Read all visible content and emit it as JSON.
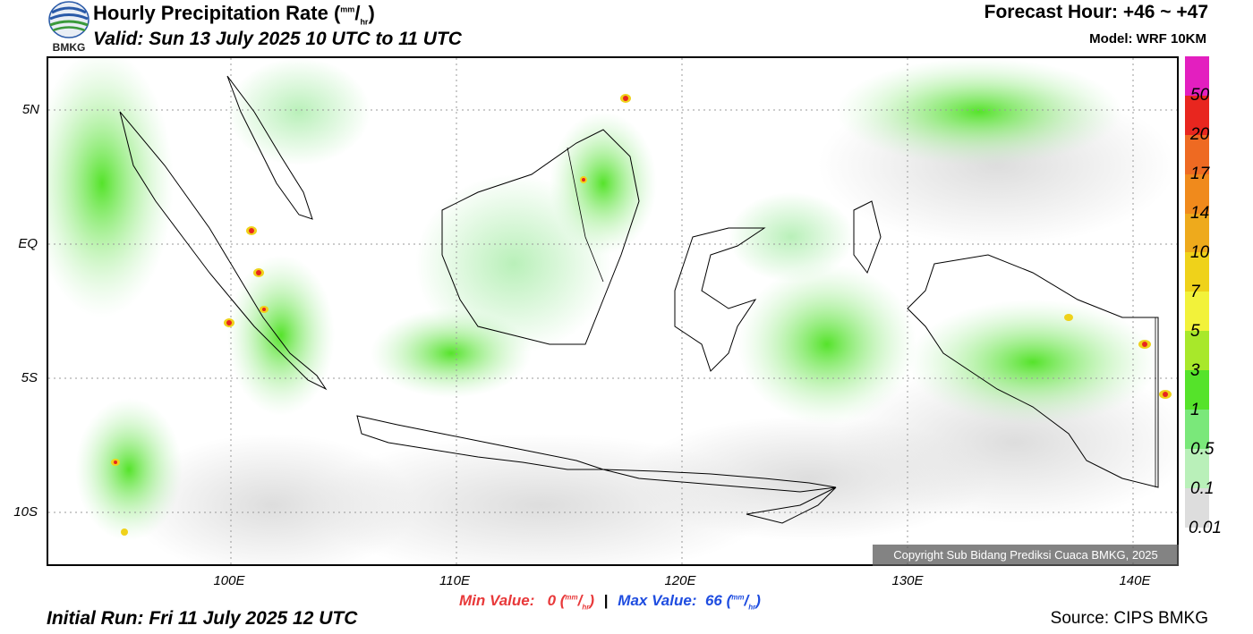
{
  "header": {
    "title": "Hourly Precipitation Rate",
    "unit_num": "mm",
    "unit_den": "hr",
    "valid": "Valid: Sun 13 July 2025 10 UTC to 11 UTC",
    "forecast_hour": "Forecast Hour: +46 ~ +47",
    "model": "Model: WRF 10KM",
    "logo_text": "BMKG"
  },
  "map": {
    "lat_labels": [
      "5N",
      "EQ",
      "5S",
      "10S"
    ],
    "lon_labels": [
      "100E",
      "110E",
      "120E",
      "130E",
      "140E"
    ],
    "copyright": "Copyright Sub Bidang Prediksi Cuaca BMKG, 2025"
  },
  "colorbar": {
    "labels": [
      "50",
      "20",
      "17",
      "14",
      "10",
      "7",
      "5",
      "3",
      "1",
      "0.5",
      "0.1",
      "0.01"
    ],
    "colors": [
      "#e31fbf",
      "#e8261f",
      "#ee6a22",
      "#f08a1c",
      "#eeaa1c",
      "#efd21a",
      "#f2f23a",
      "#a8e82a",
      "#55e32a",
      "#7ae87a",
      "#b9f0b9",
      "#dddddd"
    ]
  },
  "footer": {
    "min_label": "Min Value:",
    "min_value": "0",
    "max_label": "Max Value:",
    "max_value": "66",
    "unit_num": "mm",
    "unit_den": "hr",
    "initial_run": "Initial Run: Fri 11 July 2025 12 UTC",
    "source": "Source: CIPS BMKG"
  }
}
